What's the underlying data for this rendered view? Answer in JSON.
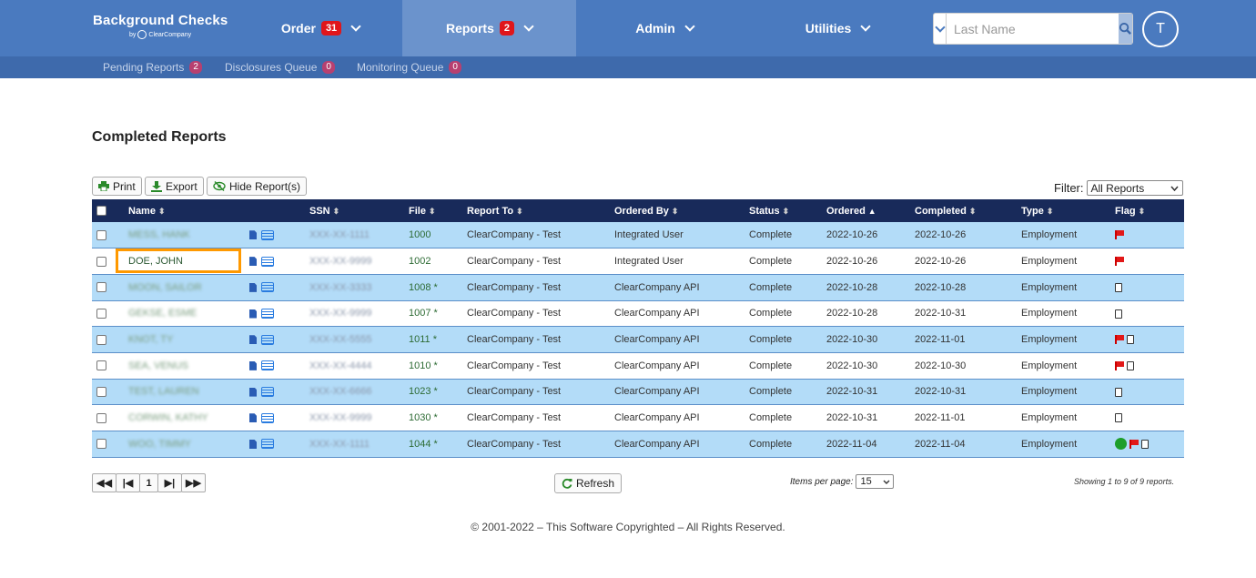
{
  "brand": {
    "title": "Background Checks",
    "sub": "ClearCompany"
  },
  "nav": [
    {
      "label": "Order",
      "badge": "31"
    },
    {
      "label": "Reports",
      "badge": "2"
    },
    {
      "label": "Admin"
    },
    {
      "label": "Utilities"
    }
  ],
  "search": {
    "placeholder": "Last Name"
  },
  "user": {
    "initial": "T"
  },
  "subnav": [
    {
      "label": "Pending Reports",
      "count": "2"
    },
    {
      "label": "Disclosures Queue",
      "count": "0"
    },
    {
      "label": "Monitoring Queue",
      "count": "0"
    }
  ],
  "page_title": "Completed Reports",
  "toolbar": {
    "print": "Print",
    "export": "Export",
    "hide": "Hide Report(s)"
  },
  "filter": {
    "label": "Filter:",
    "value": "All Reports"
  },
  "columns": [
    "Name",
    "SSN",
    "File",
    "Report To",
    "Ordered By",
    "Status",
    "Ordered",
    "Completed",
    "Type",
    "Flag"
  ],
  "rows": [
    {
      "name": "MESS, HANK",
      "ssn": "XXX-XX-1111",
      "file": "1000",
      "report_to": "ClearCompany - Test",
      "ordered_by": "Integrated User",
      "status": "Complete",
      "ordered": "2022-10-26",
      "completed": "2022-10-26",
      "type": "Employment",
      "flags": [
        "flag"
      ]
    },
    {
      "name": "DOE, JOHN",
      "ssn": "XXX-XX-9999",
      "file": "1002",
      "report_to": "ClearCompany - Test",
      "ordered_by": "Integrated User",
      "status": "Complete",
      "ordered": "2022-10-26",
      "completed": "2022-10-26",
      "type": "Employment",
      "flags": [
        "flag"
      ]
    },
    {
      "name": "MOON, SAILOR",
      "ssn": "XXX-XX-3333",
      "file": "1008 *",
      "report_to": "ClearCompany - Test",
      "ordered_by": "ClearCompany API",
      "status": "Complete",
      "ordered": "2022-10-28",
      "completed": "2022-10-28",
      "type": "Employment",
      "flags": [
        "pdf"
      ]
    },
    {
      "name": "GEKSE, ESME",
      "ssn": "XXX-XX-9999",
      "file": "1007 *",
      "report_to": "ClearCompany - Test",
      "ordered_by": "ClearCompany API",
      "status": "Complete",
      "ordered": "2022-10-28",
      "completed": "2022-10-31",
      "type": "Employment",
      "flags": [
        "pdf"
      ]
    },
    {
      "name": "KNOT, TY",
      "ssn": "XXX-XX-5555",
      "file": "1011 *",
      "report_to": "ClearCompany - Test",
      "ordered_by": "ClearCompany API",
      "status": "Complete",
      "ordered": "2022-10-30",
      "completed": "2022-11-01",
      "type": "Employment",
      "flags": [
        "flag",
        "pdf"
      ]
    },
    {
      "name": "SEA, VENUS",
      "ssn": "XXX-XX-4444",
      "file": "1010 *",
      "report_to": "ClearCompany - Test",
      "ordered_by": "ClearCompany API",
      "status": "Complete",
      "ordered": "2022-10-30",
      "completed": "2022-10-30",
      "type": "Employment",
      "flags": [
        "flag",
        "pdf"
      ]
    },
    {
      "name": "TEST, LAUREN",
      "ssn": "XXX-XX-6666",
      "file": "1023 *",
      "report_to": "ClearCompany - Test",
      "ordered_by": "ClearCompany API",
      "status": "Complete",
      "ordered": "2022-10-31",
      "completed": "2022-10-31",
      "type": "Employment",
      "flags": [
        "pdf"
      ]
    },
    {
      "name": "CORWIN, KATHY",
      "ssn": "XXX-XX-9999",
      "file": "1030 *",
      "report_to": "ClearCompany - Test",
      "ordered_by": "ClearCompany API",
      "status": "Complete",
      "ordered": "2022-10-31",
      "completed": "2022-11-01",
      "type": "Employment",
      "flags": [
        "pdf"
      ]
    },
    {
      "name": "WOO, TIMMY",
      "ssn": "XXX-XX-1111",
      "file": "1044 *",
      "report_to": "ClearCompany - Test",
      "ordered_by": "ClearCompany API",
      "status": "Complete",
      "ordered": "2022-11-04",
      "completed": "2022-11-04",
      "type": "Employment",
      "flags": [
        "dot",
        "flag",
        "pdf"
      ]
    }
  ],
  "pager": {
    "page": "1"
  },
  "refresh": "Refresh",
  "items_per_page": {
    "label": "Items per page:",
    "value": "15"
  },
  "showing": "Showing 1 to 9 of 9 reports.",
  "footer": "© 2001-2022 – This Software Copyrighted – All Rights Reserved.",
  "colors": {
    "header": "#4a7abf",
    "table_head": "#182a5a",
    "row_alt": "#b3dcf8",
    "highlight": "#ff9900"
  }
}
